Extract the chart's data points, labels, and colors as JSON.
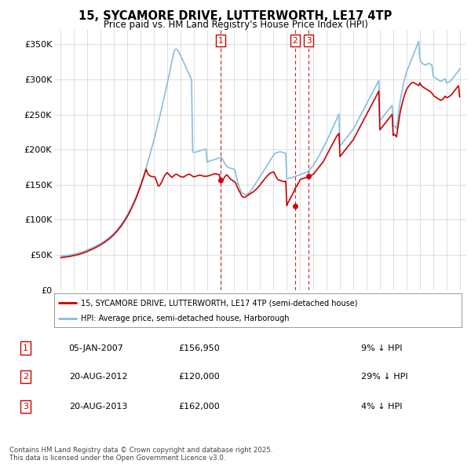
{
  "title": "15, SYCAMORE DRIVE, LUTTERWORTH, LE17 4TP",
  "subtitle": "Price paid vs. HM Land Registry's House Price Index (HPI)",
  "hpi_color": "#85bfdf",
  "price_color": "#cc0000",
  "marker_color": "#cc0000",
  "background_color": "#ffffff",
  "grid_color": "#d0d0d0",
  "ylim": [
    0,
    370000
  ],
  "yticks": [
    0,
    50000,
    100000,
    150000,
    200000,
    250000,
    300000,
    350000
  ],
  "ytick_labels": [
    "£0",
    "£50K",
    "£100K",
    "£150K",
    "£200K",
    "£250K",
    "£300K",
    "£350K"
  ],
  "legend_price_label": "15, SYCAMORE DRIVE, LUTTERWORTH, LE17 4TP (semi-detached house)",
  "legend_hpi_label": "HPI: Average price, semi-detached house, Harborough",
  "transactions": [
    {
      "num": 1,
      "date": "05-JAN-2007",
      "price": 156950,
      "hpi_diff": "9% ↓ HPI",
      "year": 2007.0
    },
    {
      "num": 2,
      "date": "20-AUG-2012",
      "price": 120000,
      "hpi_diff": "29% ↓ HPI",
      "year": 2012.63
    },
    {
      "num": 3,
      "date": "20-AUG-2013",
      "price": 162000,
      "hpi_diff": "4% ↓ HPI",
      "year": 2013.63
    }
  ],
  "copyright_text": "Contains HM Land Registry data © Crown copyright and database right 2025.\nThis data is licensed under the Open Government Licence v3.0.",
  "hpi_data_x": [
    1995.0,
    1995.08,
    1995.17,
    1995.25,
    1995.33,
    1995.42,
    1995.5,
    1995.58,
    1995.67,
    1995.75,
    1995.83,
    1995.92,
    1996.0,
    1996.08,
    1996.17,
    1996.25,
    1996.33,
    1996.42,
    1996.5,
    1996.58,
    1996.67,
    1996.75,
    1996.83,
    1996.92,
    1997.0,
    1997.08,
    1997.17,
    1997.25,
    1997.33,
    1997.42,
    1997.5,
    1997.58,
    1997.67,
    1997.75,
    1997.83,
    1997.92,
    1998.0,
    1998.08,
    1998.17,
    1998.25,
    1998.33,
    1998.42,
    1998.5,
    1998.58,
    1998.67,
    1998.75,
    1998.83,
    1998.92,
    1999.0,
    1999.08,
    1999.17,
    1999.25,
    1999.33,
    1999.42,
    1999.5,
    1999.58,
    1999.67,
    1999.75,
    1999.83,
    1999.92,
    2000.0,
    2000.08,
    2000.17,
    2000.25,
    2000.33,
    2000.42,
    2000.5,
    2000.58,
    2000.67,
    2000.75,
    2000.83,
    2000.92,
    2001.0,
    2001.08,
    2001.17,
    2001.25,
    2001.33,
    2001.42,
    2001.5,
    2001.58,
    2001.67,
    2001.75,
    2001.83,
    2001.92,
    2002.0,
    2002.08,
    2002.17,
    2002.25,
    2002.33,
    2002.42,
    2002.5,
    2002.58,
    2002.67,
    2002.75,
    2002.83,
    2002.92,
    2003.0,
    2003.08,
    2003.17,
    2003.25,
    2003.33,
    2003.42,
    2003.5,
    2003.58,
    2003.67,
    2003.75,
    2003.83,
    2003.92,
    2004.0,
    2004.08,
    2004.17,
    2004.25,
    2004.33,
    2004.42,
    2004.5,
    2004.58,
    2004.67,
    2004.75,
    2004.83,
    2004.92,
    2005.0,
    2005.08,
    2005.17,
    2005.25,
    2005.33,
    2005.42,
    2005.5,
    2005.58,
    2005.67,
    2005.75,
    2005.83,
    2005.92,
    2006.0,
    2006.08,
    2006.17,
    2006.25,
    2006.33,
    2006.42,
    2006.5,
    2006.58,
    2006.67,
    2006.75,
    2006.83,
    2006.92,
    2007.0,
    2007.08,
    2007.17,
    2007.25,
    2007.33,
    2007.42,
    2007.5,
    2007.58,
    2007.67,
    2007.75,
    2007.83,
    2007.92,
    2008.0,
    2008.08,
    2008.17,
    2008.25,
    2008.33,
    2008.42,
    2008.5,
    2008.58,
    2008.67,
    2008.75,
    2008.83,
    2008.92,
    2009.0,
    2009.08,
    2009.17,
    2009.25,
    2009.33,
    2009.42,
    2009.5,
    2009.58,
    2009.67,
    2009.75,
    2009.83,
    2009.92,
    2010.0,
    2010.08,
    2010.17,
    2010.25,
    2010.33,
    2010.42,
    2010.5,
    2010.58,
    2010.67,
    2010.75,
    2010.83,
    2010.92,
    2011.0,
    2011.08,
    2011.17,
    2011.25,
    2011.33,
    2011.42,
    2011.5,
    2011.58,
    2011.67,
    2011.75,
    2011.83,
    2011.92,
    2012.0,
    2012.08,
    2012.17,
    2012.25,
    2012.33,
    2012.42,
    2012.5,
    2012.58,
    2012.67,
    2012.75,
    2012.83,
    2012.92,
    2013.0,
    2013.08,
    2013.17,
    2013.25,
    2013.33,
    2013.42,
    2013.5,
    2013.58,
    2013.67,
    2013.75,
    2013.83,
    2013.92,
    2014.0,
    2014.08,
    2014.17,
    2014.25,
    2014.33,
    2014.42,
    2014.5,
    2014.58,
    2014.67,
    2014.75,
    2014.83,
    2014.92,
    2015.0,
    2015.08,
    2015.17,
    2015.25,
    2015.33,
    2015.42,
    2015.5,
    2015.58,
    2015.67,
    2015.75,
    2015.83,
    2015.92,
    2016.0,
    2016.08,
    2016.17,
    2016.25,
    2016.33,
    2016.42,
    2016.5,
    2016.58,
    2016.67,
    2016.75,
    2016.83,
    2016.92,
    2017.0,
    2017.08,
    2017.17,
    2017.25,
    2017.33,
    2017.42,
    2017.5,
    2017.58,
    2017.67,
    2017.75,
    2017.83,
    2017.92,
    2018.0,
    2018.08,
    2018.17,
    2018.25,
    2018.33,
    2018.42,
    2018.5,
    2018.58,
    2018.67,
    2018.75,
    2018.83,
    2018.92,
    2019.0,
    2019.08,
    2019.17,
    2019.25,
    2019.33,
    2019.42,
    2019.5,
    2019.58,
    2019.67,
    2019.75,
    2019.83,
    2019.92,
    2020.0,
    2020.08,
    2020.17,
    2020.25,
    2020.33,
    2020.42,
    2020.5,
    2020.58,
    2020.67,
    2020.75,
    2020.83,
    2020.92,
    2021.0,
    2021.08,
    2021.17,
    2021.25,
    2021.33,
    2021.42,
    2021.5,
    2021.58,
    2021.67,
    2021.75,
    2021.83,
    2021.92,
    2022.0,
    2022.08,
    2022.17,
    2022.25,
    2022.33,
    2022.42,
    2022.5,
    2022.58,
    2022.67,
    2022.75,
    2022.83,
    2022.92,
    2023.0,
    2023.08,
    2023.17,
    2023.25,
    2023.33,
    2023.42,
    2023.5,
    2023.58,
    2023.67,
    2023.75,
    2023.83,
    2023.92,
    2024.0,
    2024.08,
    2024.17,
    2024.25,
    2024.33,
    2024.42,
    2024.5,
    2024.58,
    2024.67,
    2024.75,
    2024.83,
    2024.92,
    2025.0
  ],
  "hpi_data_y": [
    48000,
    48200,
    48400,
    48600,
    48800,
    49000,
    49200,
    49500,
    49800,
    50100,
    50400,
    50700,
    51000,
    51400,
    51800,
    52200,
    52600,
    53000,
    53500,
    54000,
    54500,
    55100,
    55700,
    56300,
    57000,
    57700,
    58400,
    59100,
    59800,
    60500,
    61300,
    62100,
    62900,
    63700,
    64600,
    65500,
    66400,
    67300,
    68300,
    69300,
    70400,
    71500,
    72700,
    73900,
    75200,
    76500,
    78000,
    79500,
    81000,
    82700,
    84400,
    86200,
    88000,
    90000,
    92000,
    94200,
    96500,
    98900,
    101400,
    104000,
    106700,
    109500,
    112500,
    115600,
    118800,
    122200,
    125700,
    129400,
    133200,
    137200,
    141300,
    145500,
    149900,
    154400,
    159100,
    163900,
    168900,
    174000,
    179300,
    184700,
    190300,
    196000,
    201800,
    207700,
    213700,
    219800,
    226000,
    232300,
    238700,
    245200,
    251800,
    258500,
    265300,
    272200,
    279200,
    286300,
    293500,
    300800,
    308200,
    315700,
    323300,
    331000,
    338800,
    342000,
    343000,
    342000,
    340000,
    337000,
    334000,
    331000,
    327500,
    324000,
    320500,
    317000,
    313500,
    310000,
    306500,
    303000,
    300000,
    197000,
    196000,
    196000,
    196500,
    197000,
    197500,
    198000,
    198500,
    199000,
    199500,
    200000,
    200500,
    201000,
    182000,
    183000,
    183500,
    184000,
    184500,
    185000,
    185500,
    186000,
    186500,
    187000,
    187500,
    188000,
    188500,
    189000,
    186000,
    183000,
    180000,
    178000,
    176000,
    175000,
    174000,
    173500,
    173000,
    172500,
    172000,
    171500,
    165000,
    158000,
    152000,
    147000,
    143000,
    140000,
    138000,
    137000,
    136500,
    136000,
    136500,
    137000,
    138500,
    140000,
    142000,
    144500,
    147000,
    149500,
    152000,
    154500,
    157000,
    159500,
    162000,
    164500,
    167000,
    169500,
    172000,
    174500,
    177000,
    179500,
    182000,
    184500,
    187000,
    189500,
    192000,
    194500,
    195000,
    195500,
    196000,
    196500,
    197000,
    196500,
    196000,
    195500,
    195000,
    194500,
    158000,
    158500,
    159000,
    159500,
    160000,
    160500,
    161000,
    161500,
    162000,
    162500,
    163000,
    163500,
    164000,
    165000,
    165500,
    166000,
    166500,
    167000,
    167500,
    168000,
    170000,
    172000,
    174000,
    176000,
    178000,
    180500,
    183000,
    185500,
    188000,
    191000,
    194000,
    197000,
    200000,
    203000,
    206000,
    209000,
    212000,
    215500,
    219000,
    222500,
    226000,
    229500,
    233000,
    236500,
    240000,
    243500,
    247000,
    250500,
    205000,
    207000,
    209000,
    211000,
    213000,
    215000,
    217000,
    219000,
    221000,
    223000,
    225000,
    227000,
    229000,
    232000,
    235000,
    238000,
    241000,
    244000,
    247000,
    250000,
    253000,
    256000,
    259000,
    262000,
    265000,
    268000,
    271000,
    274000,
    277000,
    280000,
    283000,
    286000,
    289000,
    292000,
    295000,
    298000,
    241000,
    243000,
    245000,
    247000,
    249000,
    251000,
    253000,
    255000,
    257000,
    259000,
    261000,
    263000,
    233000,
    234000,
    232000,
    230000,
    240000,
    255000,
    265000,
    275000,
    283000,
    291000,
    298000,
    305000,
    310000,
    314000,
    318000,
    322000,
    326000,
    330000,
    334000,
    338000,
    342000,
    346000,
    350000,
    354000,
    330000,
    325000,
    323000,
    322000,
    321000,
    320000,
    321000,
    322000,
    323000,
    322000,
    321000,
    320000,
    305000,
    303000,
    302000,
    301000,
    300000,
    299000,
    298000,
    297000,
    298000,
    299000,
    300000,
    301000,
    295000,
    295000,
    296000,
    297000,
    298000,
    300000,
    302000,
    304000,
    306000,
    308000,
    310000,
    312000,
    315000
  ],
  "price_data_x": [
    1995.0,
    1995.08,
    1995.17,
    1995.25,
    1995.33,
    1995.42,
    1995.5,
    1995.58,
    1995.67,
    1995.75,
    1995.83,
    1995.92,
    1996.0,
    1996.08,
    1996.17,
    1996.25,
    1996.33,
    1996.42,
    1996.5,
    1996.58,
    1996.67,
    1996.75,
    1996.83,
    1996.92,
    1997.0,
    1997.08,
    1997.17,
    1997.25,
    1997.33,
    1997.42,
    1997.5,
    1997.58,
    1997.67,
    1997.75,
    1997.83,
    1997.92,
    1998.0,
    1998.08,
    1998.17,
    1998.25,
    1998.33,
    1998.42,
    1998.5,
    1998.58,
    1998.67,
    1998.75,
    1998.83,
    1998.92,
    1999.0,
    1999.08,
    1999.17,
    1999.25,
    1999.33,
    1999.42,
    1999.5,
    1999.58,
    1999.67,
    1999.75,
    1999.83,
    1999.92,
    2000.0,
    2000.08,
    2000.17,
    2000.25,
    2000.33,
    2000.42,
    2000.5,
    2000.58,
    2000.67,
    2000.75,
    2000.83,
    2000.92,
    2001.0,
    2001.08,
    2001.17,
    2001.25,
    2001.33,
    2001.42,
    2001.5,
    2001.58,
    2001.67,
    2001.75,
    2001.83,
    2001.92,
    2002.0,
    2002.08,
    2002.17,
    2002.25,
    2002.33,
    2002.42,
    2002.5,
    2002.58,
    2002.67,
    2002.75,
    2002.83,
    2002.92,
    2003.0,
    2003.08,
    2003.17,
    2003.25,
    2003.33,
    2003.42,
    2003.5,
    2003.58,
    2003.67,
    2003.75,
    2003.83,
    2003.92,
    2004.0,
    2004.08,
    2004.17,
    2004.25,
    2004.33,
    2004.42,
    2004.5,
    2004.58,
    2004.67,
    2004.75,
    2004.83,
    2004.92,
    2005.0,
    2005.08,
    2005.17,
    2005.25,
    2005.33,
    2005.42,
    2005.5,
    2005.58,
    2005.67,
    2005.75,
    2005.83,
    2005.92,
    2006.0,
    2006.08,
    2006.17,
    2006.25,
    2006.33,
    2006.42,
    2006.5,
    2006.58,
    2006.67,
    2006.75,
    2006.83,
    2006.92,
    2007.0,
    2007.08,
    2007.17,
    2007.25,
    2007.33,
    2007.42,
    2007.5,
    2007.58,
    2007.67,
    2007.75,
    2007.83,
    2007.92,
    2008.0,
    2008.08,
    2008.17,
    2008.25,
    2008.33,
    2008.42,
    2008.5,
    2008.58,
    2008.67,
    2008.75,
    2008.83,
    2008.92,
    2009.0,
    2009.08,
    2009.17,
    2009.25,
    2009.33,
    2009.42,
    2009.5,
    2009.58,
    2009.67,
    2009.75,
    2009.83,
    2009.92,
    2010.0,
    2010.08,
    2010.17,
    2010.25,
    2010.33,
    2010.42,
    2010.5,
    2010.58,
    2010.67,
    2010.75,
    2010.83,
    2010.92,
    2011.0,
    2011.08,
    2011.17,
    2011.25,
    2011.33,
    2011.42,
    2011.5,
    2011.58,
    2011.67,
    2011.75,
    2011.83,
    2011.92,
    2012.0,
    2012.08,
    2012.17,
    2012.25,
    2012.33,
    2012.42,
    2012.5,
    2012.58,
    2012.63,
    2012.75,
    2012.83,
    2012.92,
    2013.0,
    2013.08,
    2013.17,
    2013.25,
    2013.33,
    2013.42,
    2013.5,
    2013.58,
    2013.63,
    2013.75,
    2013.83,
    2013.92,
    2014.0,
    2014.08,
    2014.17,
    2014.25,
    2014.33,
    2014.42,
    2014.5,
    2014.58,
    2014.67,
    2014.75,
    2014.83,
    2014.92,
    2015.0,
    2015.08,
    2015.17,
    2015.25,
    2015.33,
    2015.42,
    2015.5,
    2015.58,
    2015.67,
    2015.75,
    2015.83,
    2015.92,
    2016.0,
    2016.08,
    2016.17,
    2016.25,
    2016.33,
    2016.42,
    2016.5,
    2016.58,
    2016.67,
    2016.75,
    2016.83,
    2016.92,
    2017.0,
    2017.08,
    2017.17,
    2017.25,
    2017.33,
    2017.42,
    2017.5,
    2017.58,
    2017.67,
    2017.75,
    2017.83,
    2017.92,
    2018.0,
    2018.08,
    2018.17,
    2018.25,
    2018.33,
    2018.42,
    2018.5,
    2018.58,
    2018.67,
    2018.75,
    2018.83,
    2018.92,
    2019.0,
    2019.08,
    2019.17,
    2019.25,
    2019.33,
    2019.42,
    2019.5,
    2019.58,
    2019.67,
    2019.75,
    2019.83,
    2019.92,
    2020.0,
    2020.08,
    2020.17,
    2020.25,
    2020.33,
    2020.42,
    2020.5,
    2020.58,
    2020.67,
    2020.75,
    2020.83,
    2020.92,
    2021.0,
    2021.08,
    2021.17,
    2021.25,
    2021.33,
    2021.42,
    2021.5,
    2021.58,
    2021.67,
    2021.75,
    2021.83,
    2021.92,
    2022.0,
    2022.08,
    2022.17,
    2022.25,
    2022.33,
    2022.42,
    2022.5,
    2022.58,
    2022.67,
    2022.75,
    2022.83,
    2022.92,
    2023.0,
    2023.08,
    2023.17,
    2023.25,
    2023.33,
    2023.42,
    2023.5,
    2023.58,
    2023.67,
    2023.75,
    2023.83,
    2023.92,
    2024.0,
    2024.08,
    2024.17,
    2024.25,
    2024.33,
    2024.42,
    2024.5,
    2024.58,
    2024.67,
    2024.75,
    2024.83,
    2024.92,
    2025.0
  ],
  "price_data_y": [
    46000,
    46200,
    46400,
    46600,
    46800,
    47000,
    47200,
    47500,
    47800,
    48100,
    48400,
    48700,
    49000,
    49400,
    49800,
    50200,
    50600,
    51000,
    51500,
    52000,
    52500,
    53100,
    53700,
    54300,
    55000,
    55700,
    56400,
    57100,
    57800,
    58500,
    59300,
    60100,
    60900,
    61700,
    62600,
    63500,
    64400,
    65300,
    66300,
    67300,
    68400,
    69500,
    70700,
    71900,
    73200,
    74500,
    76000,
    77500,
    79000,
    80700,
    82400,
    84200,
    86000,
    88000,
    90000,
    92200,
    94500,
    96900,
    99400,
    102000,
    104700,
    107500,
    110500,
    113600,
    116800,
    120200,
    123700,
    127400,
    131200,
    135200,
    139300,
    143500,
    147900,
    152400,
    157100,
    161900,
    166900,
    172000,
    167300,
    164700,
    163200,
    162000,
    161800,
    161500,
    161200,
    160900,
    156600,
    152300,
    148000,
    148500,
    150800,
    153500,
    157200,
    160800,
    163500,
    165500,
    167200,
    165500,
    163800,
    162100,
    160400,
    161000,
    163000,
    164000,
    165000,
    164500,
    163500,
    162500,
    161500,
    161000,
    161000,
    161000,
    162000,
    163000,
    164000,
    164500,
    165000,
    164000,
    163000,
    162000,
    161000,
    161500,
    162000,
    162500,
    163000,
    163500,
    163500,
    163000,
    162500,
    162000,
    162000,
    162000,
    162000,
    162500,
    163000,
    163500,
    164000,
    164500,
    165000,
    165500,
    165500,
    165000,
    164500,
    164500,
    156950,
    157500,
    158000,
    158500,
    161000,
    163000,
    164000,
    162000,
    160000,
    158000,
    157000,
    156000,
    155000,
    154000,
    152000,
    148000,
    144000,
    141000,
    138000,
    135000,
    133000,
    132000,
    132000,
    133000,
    134000,
    135000,
    136000,
    137000,
    138000,
    139000,
    140000,
    141500,
    143000,
    144500,
    146000,
    148000,
    150000,
    152000,
    154000,
    156000,
    158000,
    160000,
    162000,
    163500,
    165000,
    166500,
    167000,
    167500,
    168000,
    166000,
    162000,
    159500,
    157000,
    156500,
    156000,
    155500,
    155000,
    154500,
    154500,
    155000,
    120000,
    124000,
    127000,
    130000,
    133000,
    136000,
    139000,
    142000,
    145000,
    148000,
    151000,
    154000,
    157000,
    158000,
    158500,
    159000,
    159500,
    160000,
    160500,
    161000,
    162000,
    163000,
    163500,
    164000,
    165000,
    167000,
    169000,
    171000,
    173000,
    175000,
    177000,
    179000,
    181000,
    183000,
    186000,
    189000,
    192000,
    195000,
    198000,
    201000,
    204000,
    207000,
    210000,
    213000,
    216000,
    219000,
    221000,
    223000,
    190000,
    192000,
    194000,
    196000,
    198000,
    200000,
    202000,
    204000,
    206000,
    208000,
    210000,
    212000,
    214000,
    217000,
    220000,
    223000,
    226000,
    229000,
    232000,
    235000,
    238000,
    241000,
    244000,
    247000,
    250000,
    253000,
    256000,
    259000,
    262000,
    265000,
    268000,
    271000,
    274000,
    277000,
    280000,
    283000,
    228000,
    230000,
    232000,
    234000,
    236000,
    238000,
    240000,
    242000,
    244000,
    246000,
    248000,
    250000,
    220000,
    222000,
    220000,
    218000,
    228000,
    240000,
    250000,
    258000,
    265000,
    271000,
    276000,
    281000,
    285000,
    288000,
    290000,
    292000,
    294000,
    295000,
    295500,
    295000,
    294000,
    293000,
    292000,
    291000,
    295000,
    292000,
    290000,
    289000,
    288000,
    287000,
    286000,
    285000,
    284000,
    283000,
    282000,
    280000,
    278000,
    276000,
    275000,
    274000,
    273000,
    272000,
    271000,
    270000,
    271000,
    272000,
    274000,
    276000,
    274000,
    274000,
    275000,
    276000,
    277000,
    279000,
    281000,
    283000,
    285000,
    287000,
    289000,
    291000,
    275000
  ],
  "xlim": [
    1994.5,
    2025.5
  ],
  "xticks": [
    1995,
    1996,
    1997,
    1998,
    1999,
    2000,
    2001,
    2002,
    2003,
    2004,
    2005,
    2006,
    2007,
    2008,
    2009,
    2010,
    2011,
    2012,
    2013,
    2014,
    2015,
    2016,
    2017,
    2018,
    2019,
    2020,
    2021,
    2022,
    2023,
    2024,
    2025
  ],
  "fig_width": 6.0,
  "fig_height": 5.9,
  "dpi": 100
}
